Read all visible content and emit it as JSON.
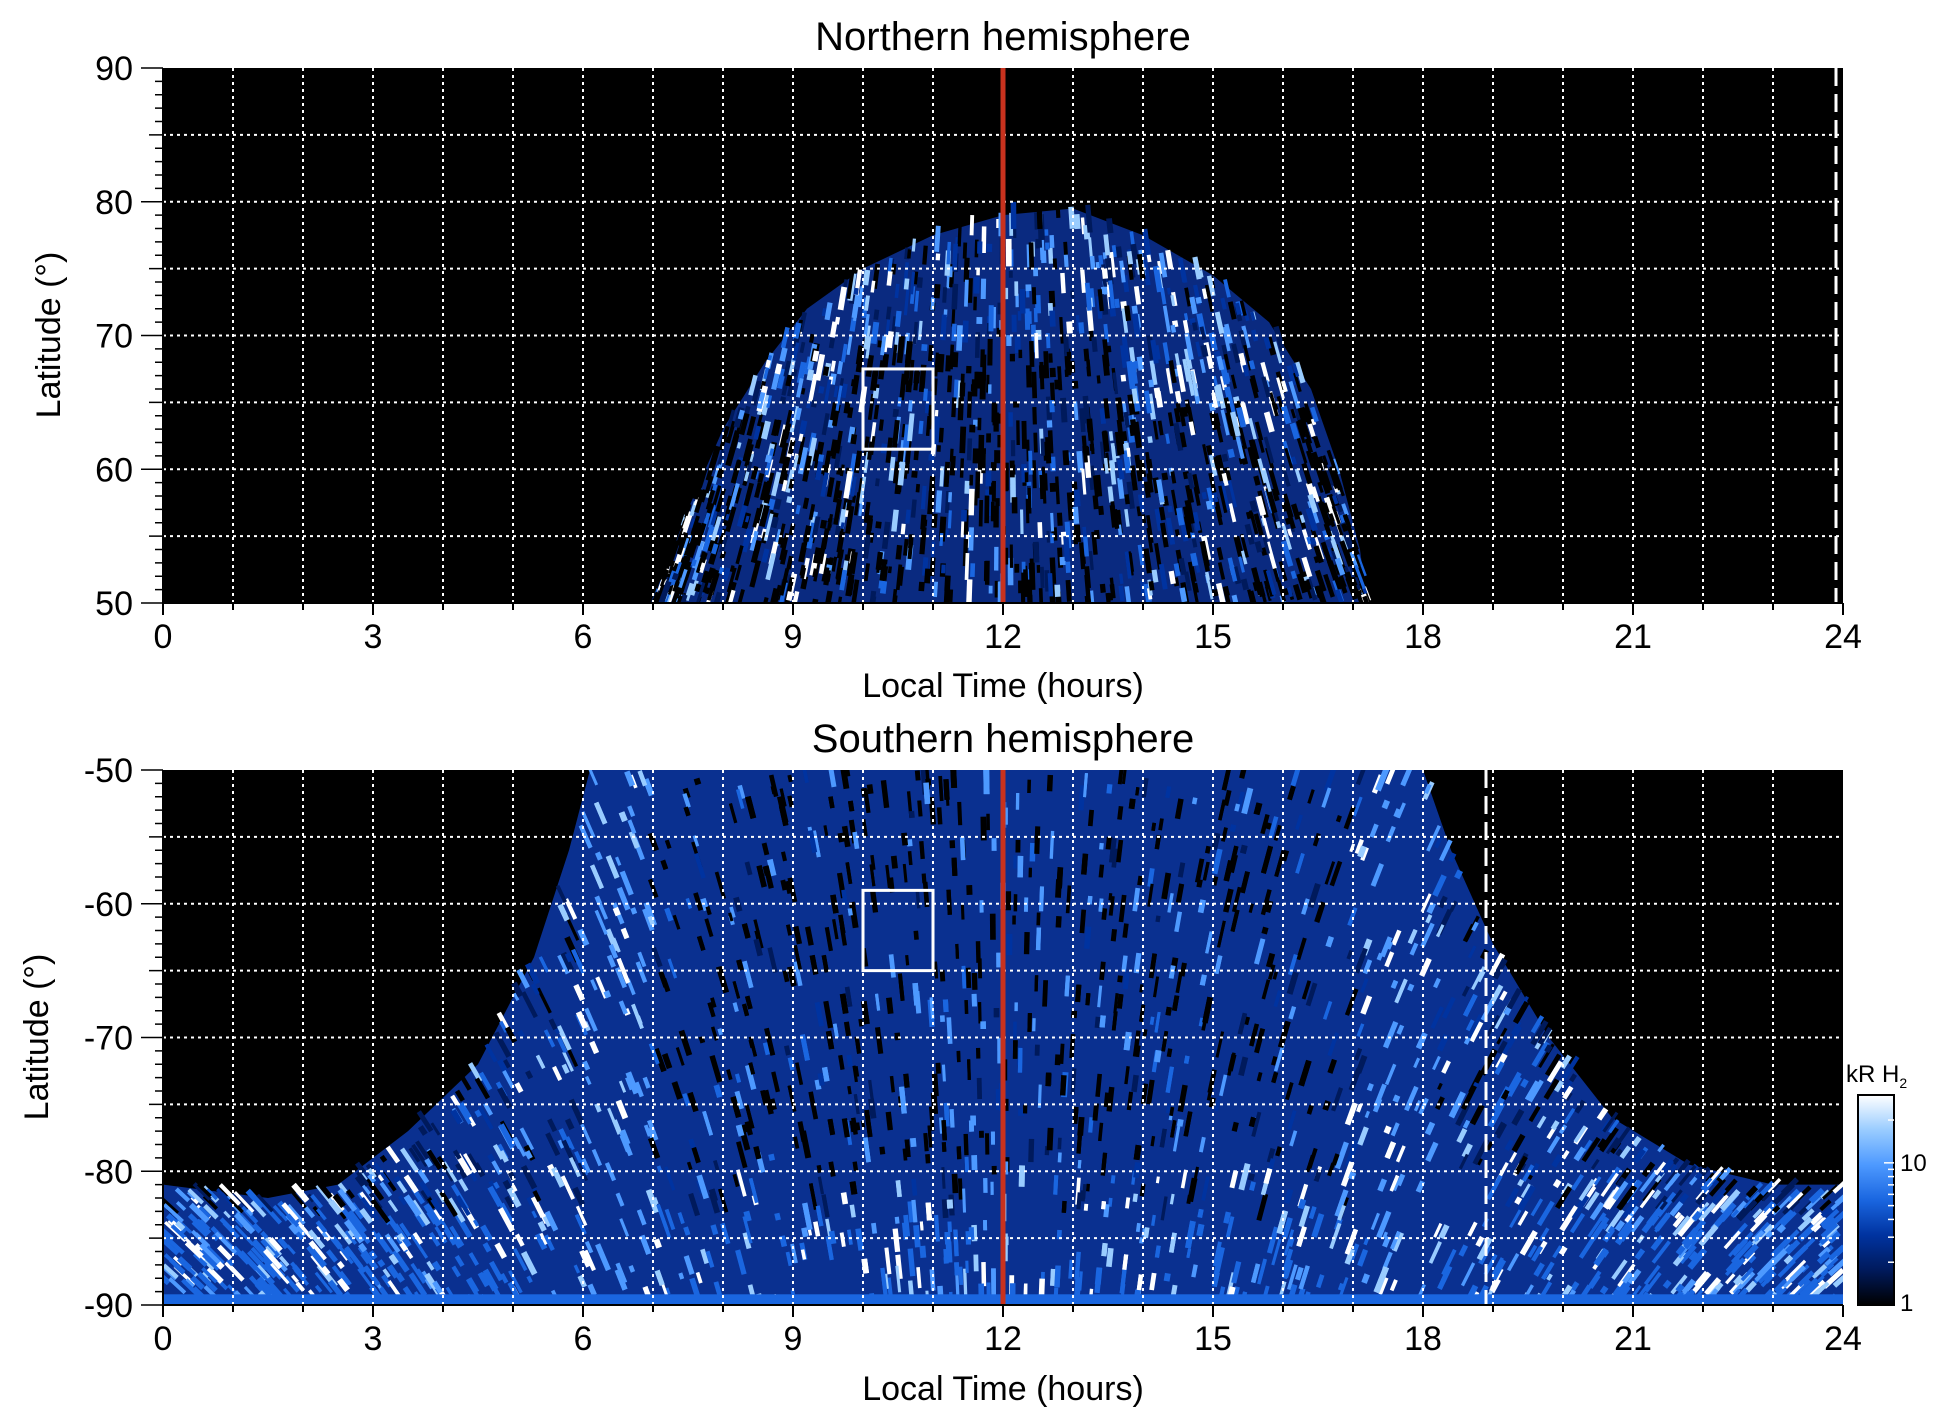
{
  "chart_data": [
    {
      "type": "heatmap",
      "title": "Northern hemisphere",
      "xlabel": "Local Time (hours)",
      "ylabel": "Latitude (°)",
      "xlim": [
        0,
        24
      ],
      "ylim": [
        50,
        90
      ],
      "xticks": [
        0,
        3,
        6,
        9,
        12,
        15,
        18,
        21,
        24
      ],
      "xtick_labels": [
        "0",
        "3",
        "6",
        "9",
        "12",
        "15",
        "18",
        "21",
        "24"
      ],
      "yticks": [
        50,
        60,
        70,
        80,
        90
      ],
      "ytick_labels": [
        "50",
        "60",
        "70",
        "80",
        "90"
      ],
      "grid": true,
      "grid_x_step": 1,
      "grid_y_step": 5,
      "background_color": "#000000",
      "noon_line": {
        "x": 12,
        "color": "#c8321e"
      },
      "dashed_line": {
        "x": 23.9,
        "color": "#ffffff"
      },
      "highlight_box": {
        "x": [
          10,
          11
        ],
        "y": [
          61.5,
          67.5
        ]
      },
      "emission_region": {
        "lt_range": [
          7.0,
          17.2
        ],
        "boundary": [
          [
            7.0,
            50
          ],
          [
            7.5,
            57
          ],
          [
            8.0,
            63
          ],
          [
            8.6,
            68
          ],
          [
            9.2,
            72
          ],
          [
            10,
            75
          ],
          [
            11,
            77.5
          ],
          [
            12,
            79
          ],
          [
            13,
            79.5
          ],
          [
            14,
            77.5
          ],
          [
            15,
            74.5
          ],
          [
            15.8,
            71
          ],
          [
            16.4,
            66
          ],
          [
            16.8,
            60
          ],
          [
            17.1,
            54
          ],
          [
            17.2,
            50
          ]
        ],
        "dark_band": {
          "lt_range": [
            9.8,
            13.6
          ],
          "lat_range": [
            66,
            69
          ]
        },
        "bright_band": {
          "lt_range": [
            11.2,
            12.8
          ],
          "lat_range": [
            70,
            76
          ]
        }
      }
    },
    {
      "type": "heatmap",
      "title": "Southern hemisphere",
      "xlabel": "Local Time (hours)",
      "ylabel": "Latitude (°)",
      "xlim": [
        0,
        24
      ],
      "ylim": [
        -90,
        -50
      ],
      "xticks": [
        0,
        3,
        6,
        9,
        12,
        15,
        18,
        21,
        24
      ],
      "xtick_labels": [
        "0",
        "3",
        "6",
        "9",
        "12",
        "15",
        "18",
        "21",
        "24"
      ],
      "yticks": [
        -90,
        -80,
        -70,
        -60,
        -50
      ],
      "ytick_labels": [
        "-90",
        "-80",
        "-70",
        "-60",
        "-50"
      ],
      "grid": true,
      "grid_x_step": 1,
      "grid_y_step": 5,
      "background_color": "#000000",
      "noon_line": {
        "x": 12,
        "color": "#c8321e"
      },
      "dashed_line": {
        "x": 18.9,
        "color": "#ffffff"
      },
      "highlight_box": {
        "x": [
          10,
          11
        ],
        "y": [
          -65,
          -59
        ]
      },
      "emission_region": {
        "lt_range": [
          0,
          24
        ],
        "boundary": [
          [
            0,
            -81
          ],
          [
            1.5,
            -82
          ],
          [
            2.5,
            -81
          ],
          [
            3.5,
            -77
          ],
          [
            4.5,
            -72
          ],
          [
            5.3,
            -64
          ],
          [
            5.8,
            -56
          ],
          [
            6.1,
            -50
          ],
          [
            18.0,
            -50
          ],
          [
            18.4,
            -56
          ],
          [
            19,
            -63
          ],
          [
            19.8,
            -70
          ],
          [
            20.7,
            -76
          ],
          [
            21.8,
            -79.5
          ],
          [
            23,
            -81
          ],
          [
            24,
            -81
          ]
        ],
        "dark_core": {
          "lt_range": [
            7.0,
            16.8
          ],
          "lat_range": [
            -82,
            -50
          ]
        },
        "bright_arcs": [
          {
            "center_lt": 6.5,
            "lat_range": [
              -82,
              -50
            ]
          },
          {
            "center_lt": 17.7,
            "lat_range": [
              -82,
              -50
            ]
          }
        ]
      }
    }
  ],
  "colorbar": {
    "unit_label": "kR H",
    "unit_subscript": "2",
    "scale": "log",
    "range": [
      1,
      30
    ],
    "tick_labels": [
      "1",
      "10"
    ],
    "colors": [
      "#000000",
      "#001a5c",
      "#0033a0",
      "#1a66e0",
      "#4d99ff",
      "#99ccff",
      "#ffffff"
    ]
  }
}
